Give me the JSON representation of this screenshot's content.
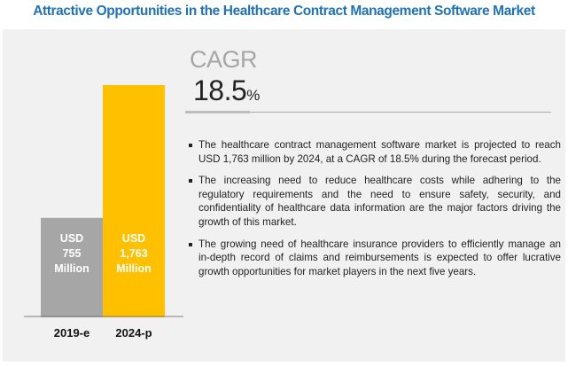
{
  "title": "Attractive Opportunities in the Healthcare Contract Management Software Market",
  "cagr": {
    "label": "CAGR",
    "value": "18.5",
    "unit": "%"
  },
  "bullets": [
    "The healthcare contract management software market is projected to reach USD 1,763 million by 2024, at a CAGR of 18.5% during the forecast period.",
    "The increasing need to reduce healthcare costs while adhering to the regulatory requirements and the need to ensure safety, security, and confidentiality of healthcare data information are the major factors driving the growth of this market.",
    "The growing need of healthcare insurance providers to efficiently manage an in-depth record of claims and reimbursements is expected to offer lucrative growth opportunities for market players in the next five years."
  ],
  "chart_data": {
    "type": "bar",
    "categories": [
      "2019-e",
      "2024-p"
    ],
    "values": [
      755,
      1763
    ],
    "unit": "USD Million",
    "data_labels": [
      [
        "USD",
        "755",
        "Million"
      ],
      [
        "USD",
        "1,763",
        "Million"
      ]
    ],
    "colors": [
      "#a6a6a6",
      "#ffc000"
    ],
    "grid": false
  }
}
